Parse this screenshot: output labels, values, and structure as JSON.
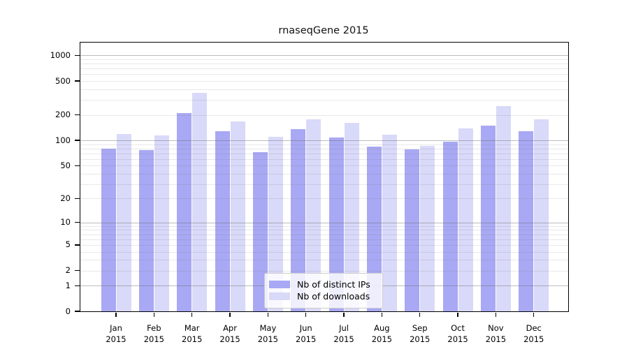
{
  "title": "rnaseqGene 2015",
  "colors": {
    "distinct_ips": "#a8a8f4",
    "downloads": "#d9d9f9",
    "grid_major": "#c4c4c4",
    "grid_minor": "#e8e8e8",
    "spine": "#000000",
    "legend_border": "#cccccc",
    "background": "#ffffff"
  },
  "legend": {
    "items": [
      {
        "label": "Nb of distinct IPs"
      },
      {
        "label": "Nb of downloads"
      }
    ],
    "position": "lower center"
  },
  "chart_data": {
    "type": "bar",
    "title": "rnaseqGene 2015",
    "categories": [
      "Jan 2015",
      "Feb 2015",
      "Mar 2015",
      "Apr 2015",
      "May 2015",
      "Jun 2015",
      "Jul 2015",
      "Aug 2015",
      "Sep 2015",
      "Oct 2015",
      "Nov 2015",
      "Dec 2015"
    ],
    "x_tick_line1": [
      "Jan",
      "Feb",
      "Mar",
      "Apr",
      "May",
      "Jun",
      "Jul",
      "Aug",
      "Sep",
      "Oct",
      "Nov",
      "Dec"
    ],
    "x_tick_line2": "2015",
    "series": [
      {
        "name": "Nb of distinct IPs",
        "color": "#a8a8f4",
        "values": [
          80,
          77,
          210,
          127,
          73,
          135,
          109,
          85,
          78,
          96,
          149,
          127
        ]
      },
      {
        "name": "Nb of downloads",
        "color": "#d9d9f9",
        "values": [
          118,
          115,
          360,
          166,
          110,
          177,
          162,
          116,
          86,
          139,
          255,
          177
        ]
      }
    ],
    "xlabel": "",
    "ylabel": "",
    "y_scale": "log1p",
    "y_ticks": [
      0,
      1,
      2,
      5,
      10,
      20,
      50,
      100,
      200,
      500,
      1000
    ],
    "ylim": [
      0,
      1400
    ],
    "grid": true,
    "grid_major_at": [
      1,
      10,
      100,
      1000
    ]
  }
}
